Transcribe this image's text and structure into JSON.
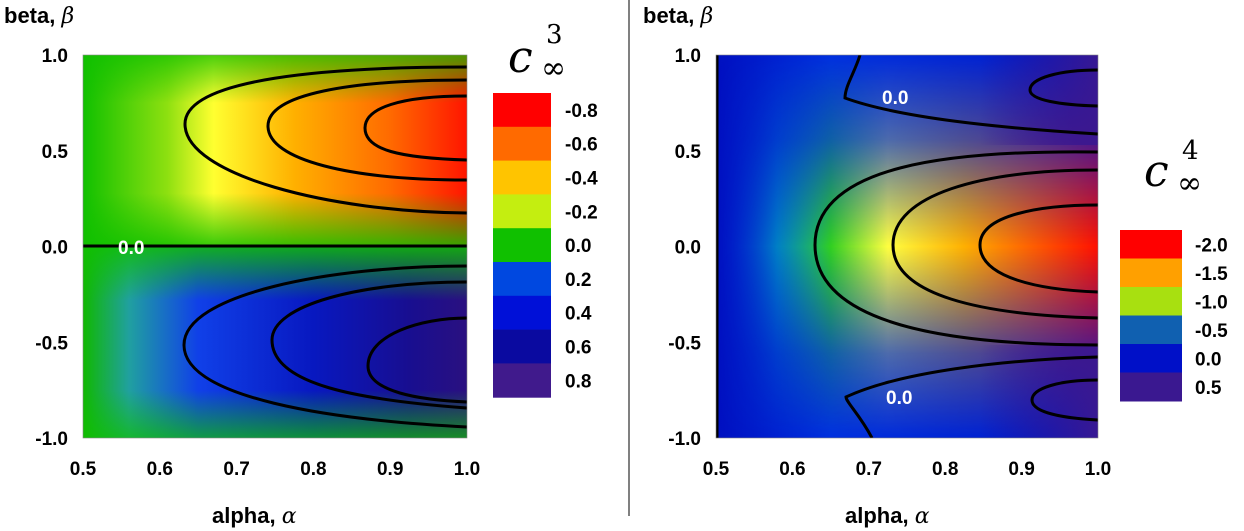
{
  "chart_data": [
    {
      "type": "heatmap",
      "xlabel": "alpha,",
      "xlabel_symbol": "α",
      "ylabel": "beta,",
      "ylabel_symbol": "β",
      "xlim": [
        0.5,
        1.0
      ],
      "ylim": [
        -1.0,
        1.0
      ],
      "xticks": [
        "0.5",
        "0.6",
        "0.7",
        "0.8",
        "0.9",
        "1.0"
      ],
      "yticks": [
        "1.0",
        "0.5",
        "0.0",
        "-0.5",
        "-1.0"
      ],
      "colorbar_title": "c",
      "colorbar_superscript": "3",
      "colorbar_subscript": "∞",
      "colorbar": [
        {
          "label": "-0.8",
          "color": "#ff0000"
        },
        {
          "label": "-0.6",
          "color": "#ff6a00"
        },
        {
          "label": "-0.4",
          "color": "#ffc400"
        },
        {
          "label": "-0.2",
          "color": "#c4ee10"
        },
        {
          "label": "0.0",
          "color": "#10c000"
        },
        {
          "label": "0.2",
          "color": "#0048e0"
        },
        {
          "label": "0.4",
          "color": "#0010d8"
        },
        {
          "label": "0.6",
          "color": "#0a0aa0"
        },
        {
          "label": "0.8",
          "color": "#401a8c"
        }
      ],
      "contour_labels": [
        "0.0"
      ]
    },
    {
      "type": "heatmap",
      "xlabel": "alpha,",
      "xlabel_symbol": "α",
      "ylabel": "beta,",
      "ylabel_symbol": "β",
      "xlim": [
        0.5,
        1.0
      ],
      "ylim": [
        -1.0,
        1.0
      ],
      "xticks": [
        "0.5",
        "0.6",
        "0.7",
        "0.8",
        "0.9",
        "1.0"
      ],
      "yticks": [
        "1.0",
        "0.5",
        "0.0",
        "-0.5",
        "-1.0"
      ],
      "colorbar_title": "c",
      "colorbar_superscript": "4",
      "colorbar_subscript": "∞",
      "colorbar": [
        {
          "label": "-2.0",
          "color": "#ff0000"
        },
        {
          "label": "-1.5",
          "color": "#ffa000"
        },
        {
          "label": "-1.0",
          "color": "#a8e010"
        },
        {
          "label": "-0.5",
          "color": "#1060b0"
        },
        {
          "label": "0.0",
          "color": "#0010c8"
        },
        {
          "label": "0.5",
          "color": "#3a1890"
        }
      ],
      "contour_labels": [
        "0.0",
        "0.0"
      ]
    }
  ]
}
